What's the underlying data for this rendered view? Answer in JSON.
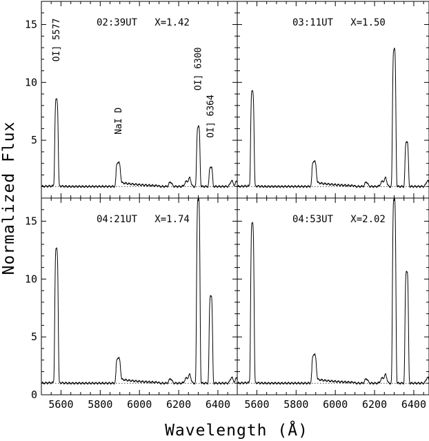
{
  "chart_data": {
    "type": "line",
    "xlabel": "Wavelength (Å)",
    "ylabel": "Normalized Flux",
    "xlim": [
      5500,
      6500
    ],
    "ylim": [
      0,
      17
    ],
    "xticks": [
      5600,
      5800,
      6000,
      6200,
      6400
    ],
    "yticks": [
      0,
      5,
      10,
      15
    ],
    "grid": false,
    "continuum_level": 1,
    "line_labels": [
      {
        "text": "OI] 5577",
        "x": 5577,
        "y": 11.8
      },
      {
        "text": "NaI D",
        "x": 5893,
        "y": 5.5
      },
      {
        "text": "OI] 6300",
        "x": 6300,
        "y": 9.3
      },
      {
        "text": "OI] 6364",
        "x": 6364,
        "y": 5.2
      }
    ],
    "panels": [
      {
        "label": "02:39UT   X=1.42",
        "lines": {
          "o5577": 8.5,
          "na": 3.0,
          "o6300": 6.2,
          "o6364": 2.7
        }
      },
      {
        "label": "03:11UT   X=1.50",
        "lines": {
          "o5577": 9.2,
          "na": 3.1,
          "o6300": 12.9,
          "o6364": 4.9
        }
      },
      {
        "label": "04:21UT   X=1.74",
        "lines": {
          "o5577": 12.6,
          "na": 3.1,
          "o6300": 17.0,
          "o6364": 8.6
        }
      },
      {
        "label": "04:53UT   X=2.02",
        "lines": {
          "o5577": 14.8,
          "na": 3.4,
          "o6300": 17.0,
          "o6364": 10.7
        }
      }
    ]
  }
}
